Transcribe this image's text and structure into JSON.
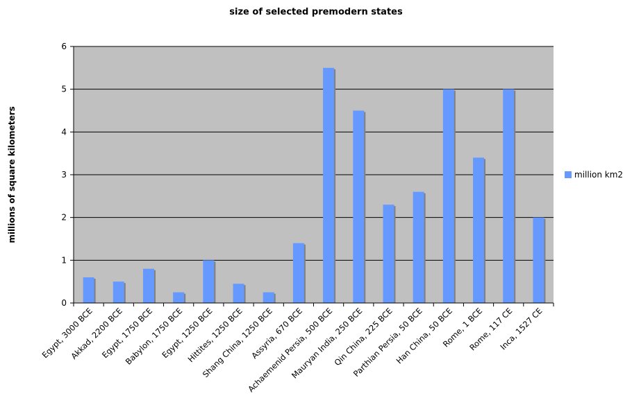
{
  "chart_data": {
    "type": "bar",
    "title": "size of selected premodern states",
    "xlabel": "",
    "ylabel": "millions of square kilometers",
    "ylim": [
      0,
      6
    ],
    "yticks": [
      0,
      1,
      2,
      3,
      4,
      5,
      6
    ],
    "grid": true,
    "legend_position": "right",
    "plot_background": "#c0c0c0",
    "bar_color": "#6699ff",
    "bar_shadow_color": "#808080",
    "categories": [
      "Egypt, 3000 BCE",
      "Akkad, 2200 BCE",
      "Egypt, 1750 BCE",
      "Babylon, 1750 BCE",
      "Egypt, 1250 BCE",
      "Hittites, 1250 BCE",
      "Shang China, 1250 BCE",
      "Assyria, 670 BCE",
      "Achaemenid Persia, 500 BCE",
      "Mauryan India, 250 BCE",
      "Qin China, 225 BCE",
      "Parthian Persia, 50 BCE",
      "Han China, 50 BCE",
      "Rome, 1 BCE",
      "Rome, 117 CE",
      "Inca, 1527 CE"
    ],
    "series": [
      {
        "name": "million km2",
        "values": [
          0.6,
          0.5,
          0.8,
          0.25,
          1.0,
          0.45,
          0.25,
          1.4,
          5.5,
          4.5,
          2.3,
          2.6,
          5.0,
          3.4,
          5.0,
          2.0
        ]
      }
    ]
  }
}
